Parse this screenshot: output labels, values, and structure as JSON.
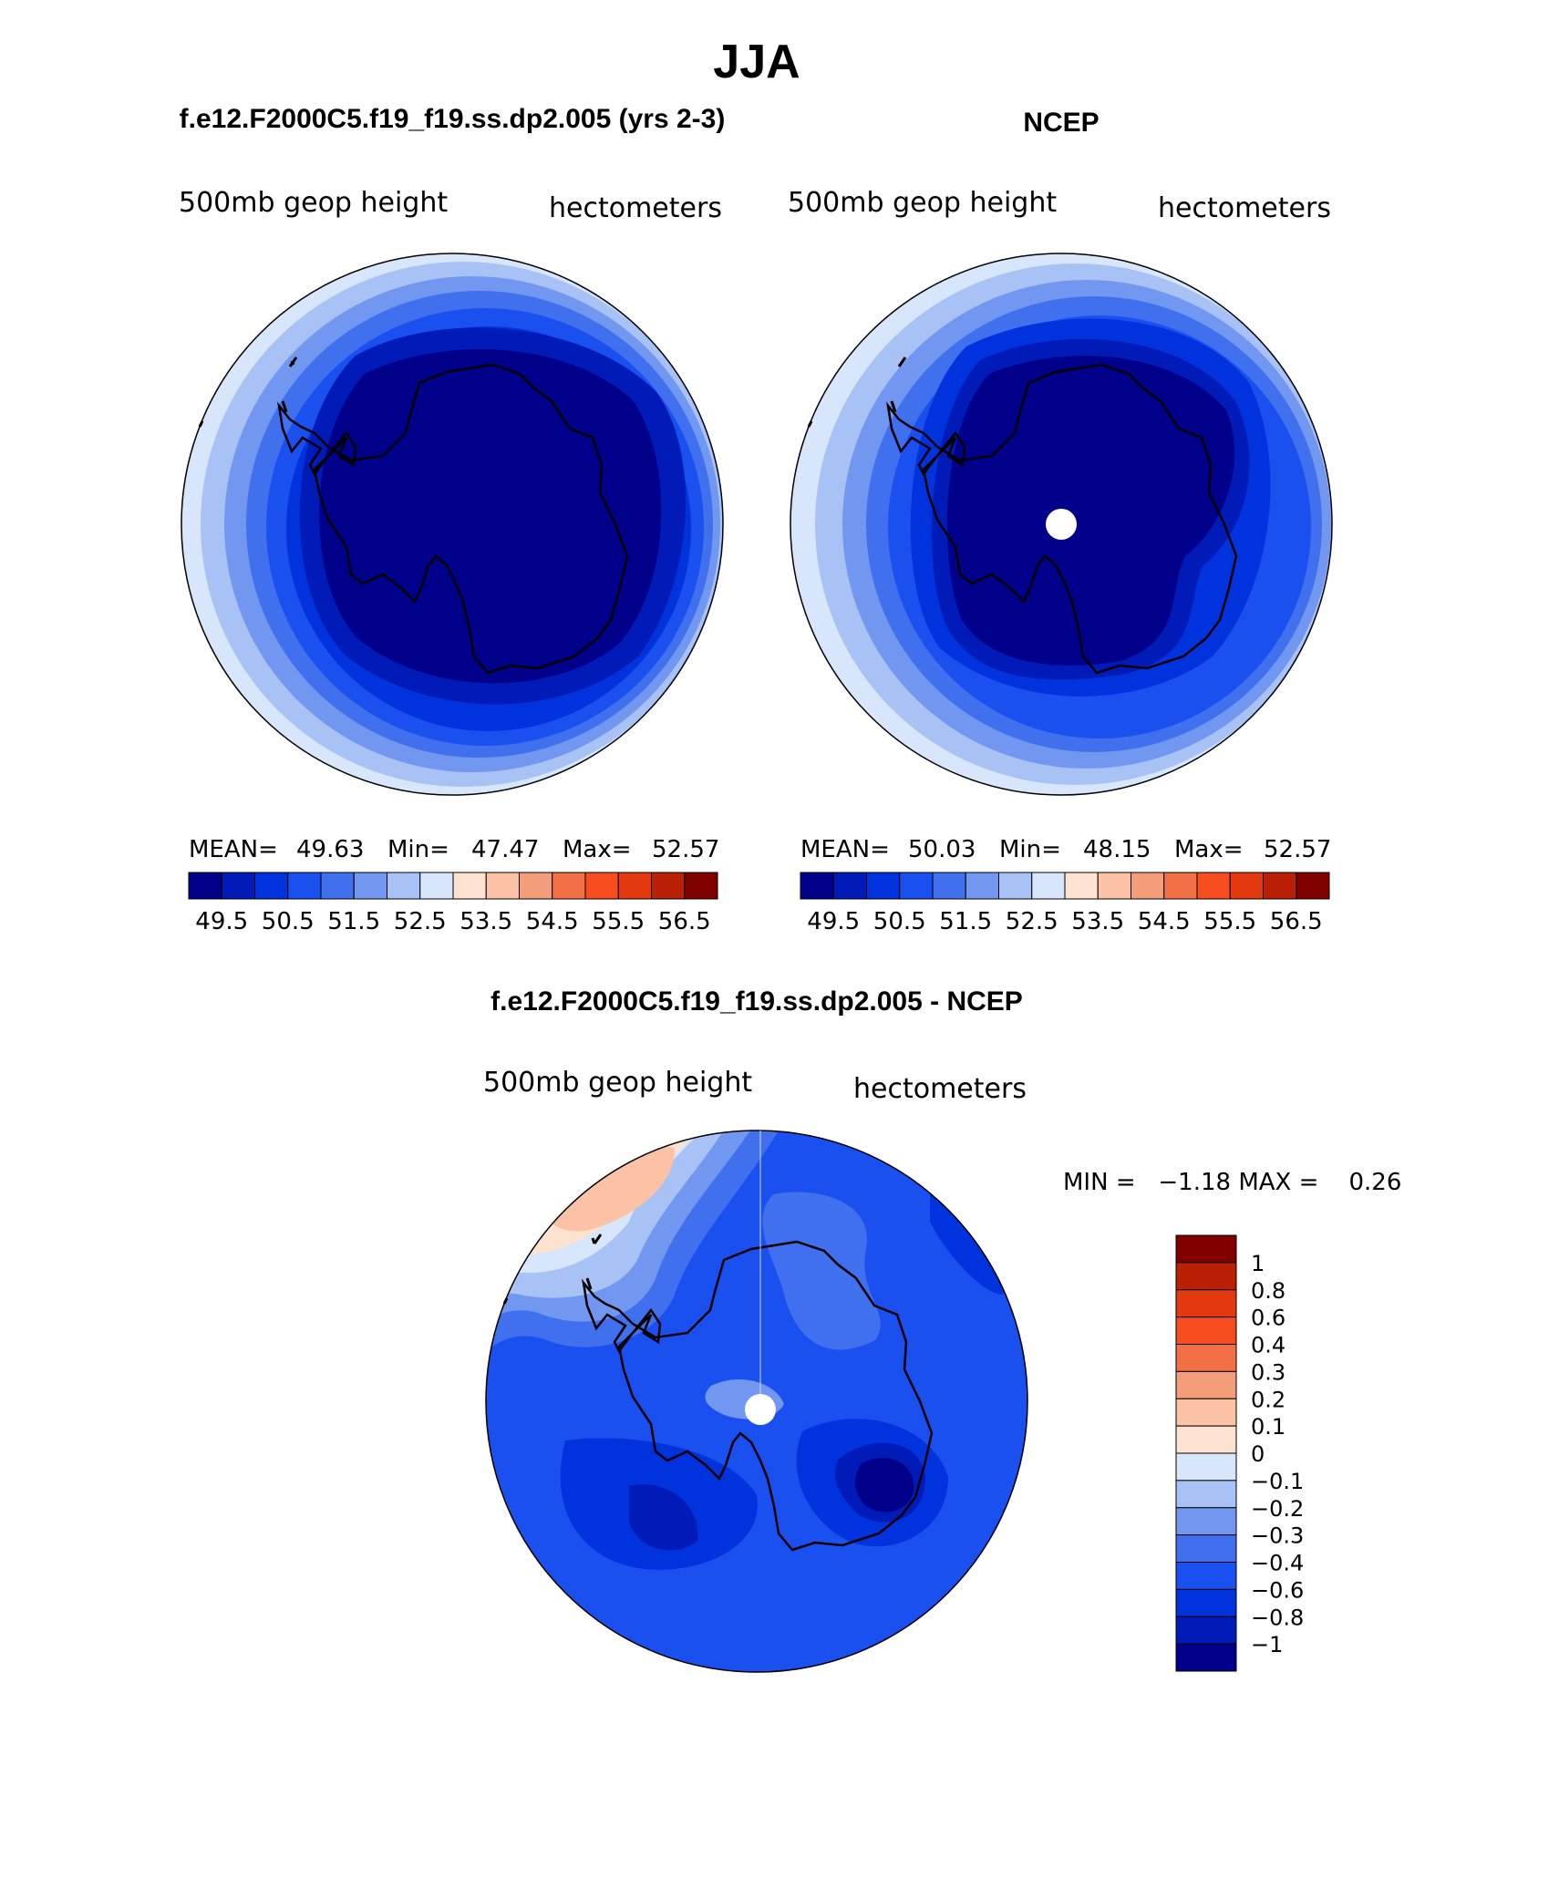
{
  "figure": {
    "main_title": "JJA",
    "subtitle": "hectometers"
  },
  "panels": [
    {
      "title": "f.e12.F2000C5.f19_f19.ss.dp2.005 (yrs 2-3)",
      "variable": "500mb geop height",
      "units": "hectometers",
      "stats": {
        "mean_label": "MEAN=",
        "mean": "49.63",
        "min_label": "Min=",
        "min": "47.47",
        "max_label": "Max=",
        "max": "52.57"
      },
      "has_pole_hole": false
    },
    {
      "title": "NCEP",
      "variable": "500mb geop height",
      "units": "hectometers",
      "stats": {
        "mean_label": "MEAN=",
        "mean": "50.03",
        "min_label": "Min=",
        "min": "48.15",
        "max_label": "Max=",
        "max": "52.57"
      },
      "has_pole_hole": true
    },
    {
      "title": "f.e12.F2000C5.f19_f19.ss.dp2.005 - NCEP",
      "variable": "500mb geop height",
      "units": "hectometers",
      "stats_text": "MIN =   −1.18 MAX =    0.26",
      "has_pole_hole": true
    }
  ],
  "chart_data": [
    {
      "type": "heatmap",
      "projection": "south polar stereographic",
      "title": "f.e12.F2000C5.f19_f19.ss.dp2.005 (yrs 2-3)",
      "field": "500mb geop height",
      "units": "hectometers",
      "mean": 49.63,
      "min": 47.47,
      "max": 52.57,
      "colorbar_levels": [
        49.5,
        50.5,
        51.5,
        52.5,
        53.5,
        54.5,
        55.5,
        56.5
      ],
      "colorbar_tick_labels": [
        "49.5",
        "50.5",
        "51.5",
        "52.5",
        "53.5",
        "54.5",
        "55.5",
        "56.5"
      ],
      "colors": [
        "#00008a",
        "#001bb8",
        "#0033dd",
        "#1a4ff0",
        "#4070ee",
        "#7197f0",
        "#a8c2f5",
        "#d7e6fb",
        "#fde3cf",
        "#fbc2a6",
        "#f49d7a",
        "#f37046",
        "#f64c1e",
        "#e4380f",
        "#b92005",
        "#800000"
      ]
    },
    {
      "type": "heatmap",
      "projection": "south polar stereographic",
      "title": "NCEP",
      "field": "500mb geop height",
      "units": "hectometers",
      "mean": 50.03,
      "min": 48.15,
      "max": 52.57,
      "colorbar_levels": [
        49.5,
        50.5,
        51.5,
        52.5,
        53.5,
        54.5,
        55.5,
        56.5
      ],
      "colorbar_tick_labels": [
        "49.5",
        "50.5",
        "51.5",
        "52.5",
        "53.5",
        "54.5",
        "55.5",
        "56.5"
      ],
      "colors": [
        "#00008a",
        "#001bb8",
        "#0033dd",
        "#1a4ff0",
        "#4070ee",
        "#7197f0",
        "#a8c2f5",
        "#d7e6fb",
        "#fde3cf",
        "#fbc2a6",
        "#f49d7a",
        "#f37046",
        "#f64c1e",
        "#e4380f",
        "#b92005",
        "#800000"
      ]
    },
    {
      "type": "heatmap",
      "projection": "south polar stereographic",
      "title": "f.e12.F2000C5.f19_f19.ss.dp2.005 - NCEP",
      "field": "500mb geop height",
      "units": "hectometers",
      "min": -1.18,
      "max": 0.26,
      "colorbar_levels": [
        1,
        0.8,
        0.6,
        0.4,
        0.3,
        0.2,
        0.1,
        0,
        -0.1,
        -0.2,
        -0.3,
        -0.4,
        -0.6,
        -0.8,
        -1
      ],
      "colorbar_tick_labels": [
        "1",
        "0.8",
        "0.6",
        "0.4",
        "0.3",
        "0.2",
        "0.1",
        "0",
        "−0.1",
        "−0.2",
        "−0.3",
        "−0.4",
        "−0.6",
        "−0.8",
        "−1"
      ],
      "colors": [
        "#800000",
        "#b92005",
        "#e4380f",
        "#f64c1e",
        "#f37046",
        "#f49d7a",
        "#fbc2a6",
        "#fde3cf",
        "#d7e6fb",
        "#a8c2f5",
        "#7197f0",
        "#4070ee",
        "#1a4ff0",
        "#0033dd",
        "#001bb8",
        "#00008a"
      ]
    }
  ]
}
